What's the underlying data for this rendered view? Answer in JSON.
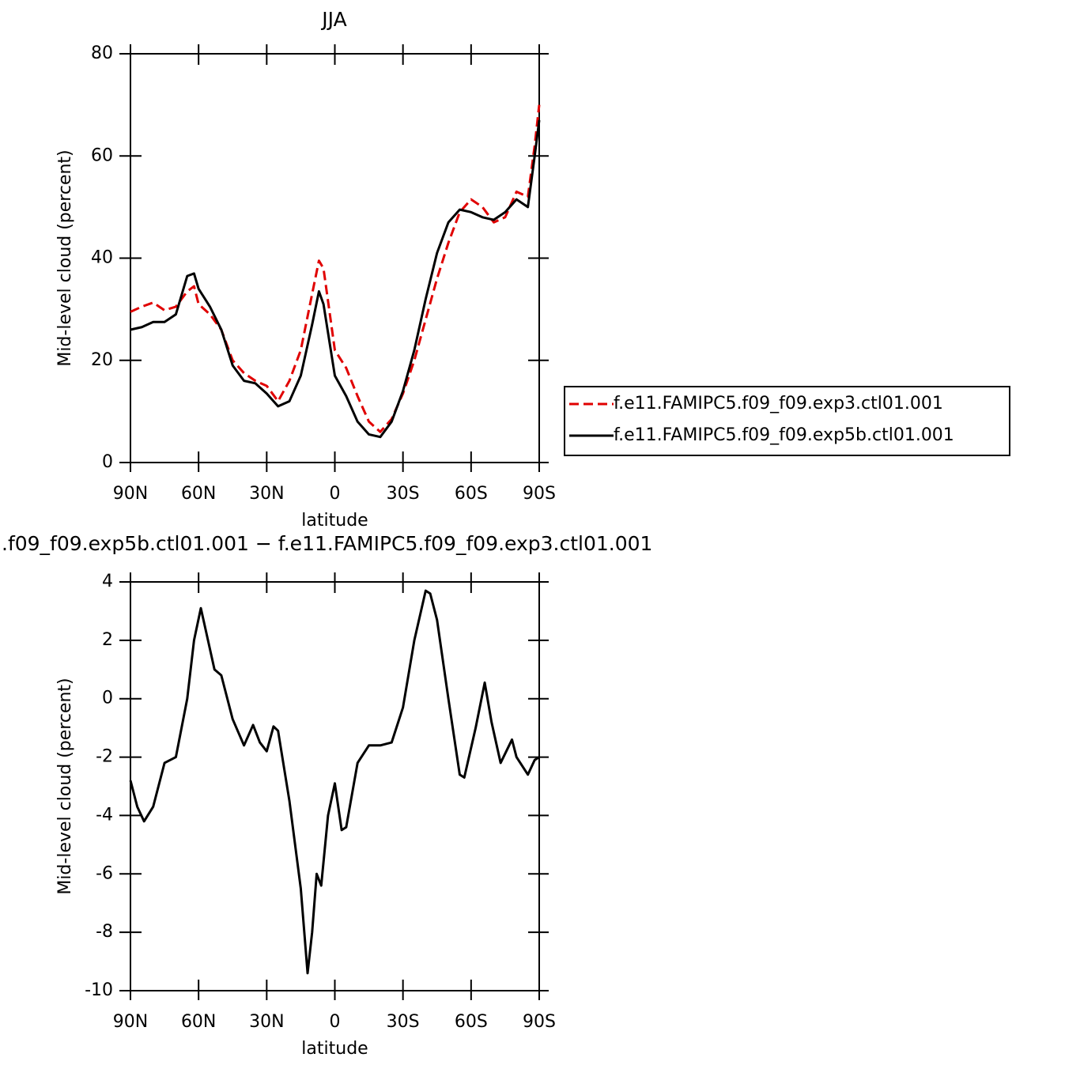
{
  "chart_data": [
    {
      "type": "line",
      "title": "JJA",
      "xlabel": "latitude",
      "ylabel": "Mid-level cloud (percent)",
      "x": [
        90,
        85,
        80,
        75,
        70,
        65,
        62,
        60,
        55,
        50,
        45,
        40,
        35,
        30,
        25,
        20,
        15,
        10,
        7,
        5,
        0,
        -5,
        -10,
        -15,
        -20,
        -25,
        -30,
        -35,
        -40,
        -45,
        -50,
        -55,
        -60,
        -65,
        -70,
        -75,
        -80,
        -85,
        -88,
        -90
      ],
      "series": [
        {
          "name": "f.e11.FAMIPC5.f09_f09.exp3.ctl01.001",
          "color": "#e00000",
          "line_style": "dashed",
          "values": [
            29.5,
            30.5,
            31.3,
            29.8,
            30.5,
            33.5,
            34.5,
            31,
            29,
            26,
            20,
            17.5,
            16,
            15,
            12,
            16,
            22,
            33,
            39.5,
            38,
            22,
            18.5,
            13,
            8,
            6,
            8.5,
            13.5,
            20,
            28,
            36,
            43,
            49,
            51.5,
            50,
            47,
            48,
            53,
            52,
            62,
            70
          ]
        },
        {
          "name": "f.e11.FAMIPC5.f09_f09.exp5b.ctl01.001",
          "color": "#000000",
          "line_style": "solid",
          "values": [
            26,
            26.5,
            27.5,
            27.5,
            29,
            36.5,
            37,
            34,
            30.5,
            26,
            19,
            16,
            15.5,
            13.5,
            11,
            12,
            17,
            27,
            33.5,
            31,
            17,
            13,
            8,
            5.5,
            5,
            8,
            14,
            22,
            32,
            41,
            47,
            49.5,
            49,
            48,
            47.5,
            49,
            51.5,
            50,
            60,
            67
          ]
        }
      ],
      "xlim": [
        90,
        -90
      ],
      "xticks": [
        {
          "value": 90,
          "label": "90N"
        },
        {
          "value": 60,
          "label": "60N"
        },
        {
          "value": 30,
          "label": "30N"
        },
        0,
        {
          "value": -30,
          "label": "30S"
        },
        {
          "value": -60,
          "label": "60S"
        },
        {
          "value": -90,
          "label": "90S"
        }
      ],
      "ylim": [
        0,
        80
      ],
      "yticks": [
        0,
        20,
        40,
        60,
        80
      ],
      "legend": "right"
    },
    {
      "type": "line",
      "title": ".f09_f09.exp5b.ctl01.001  −  f.e11.FAMIPC5.f09_f09.exp3.ctl01.001",
      "xlabel": "latitude",
      "ylabel": "Mid-level cloud (percent)",
      "x": [
        90,
        87,
        84,
        80,
        75,
        70,
        65,
        62,
        59,
        57,
        53,
        50,
        45,
        40,
        36,
        33,
        30,
        27,
        25,
        20,
        15,
        12,
        10,
        8,
        6,
        3,
        0,
        -3,
        -5,
        -10,
        -15,
        -20,
        -25,
        -30,
        -35,
        -40,
        -42,
        -45,
        -50,
        -55,
        -57,
        -62,
        -66,
        -69,
        -73,
        -78,
        -80,
        -85,
        -88,
        -90
      ],
      "values": [
        -2.8,
        -3.7,
        -4.2,
        -3.7,
        -2.2,
        -2,
        0,
        2,
        3.1,
        2.4,
        1,
        0.8,
        -0.7,
        -1.6,
        -0.9,
        -1.5,
        -1.8,
        -0.95,
        -1.1,
        -3.5,
        -6.5,
        -9.4,
        -8,
        -6,
        -6.4,
        -4,
        -2.9,
        -4.5,
        -4.4,
        -2.2,
        -1.6,
        -1.6,
        -1.5,
        -0.3,
        2,
        3.7,
        3.6,
        2.7,
        0,
        -2.6,
        -2.7,
        -1,
        0.55,
        -0.8,
        -2.2,
        -1.4,
        -2,
        -2.6,
        -2.1,
        -2
      ],
      "color": "#000000",
      "xlim": [
        90,
        -90
      ],
      "xticks": [
        {
          "value": 90,
          "label": "90N"
        },
        {
          "value": 60,
          "label": "60N"
        },
        {
          "value": 30,
          "label": "30N"
        },
        0,
        {
          "value": -30,
          "label": "30S"
        },
        {
          "value": -60,
          "label": "60S"
        },
        {
          "value": -90,
          "label": "90S"
        }
      ],
      "ylim": [
        -10,
        4
      ],
      "yticks": [
        -10,
        -8,
        -6,
        -4,
        -2,
        0,
        2,
        4
      ]
    }
  ]
}
